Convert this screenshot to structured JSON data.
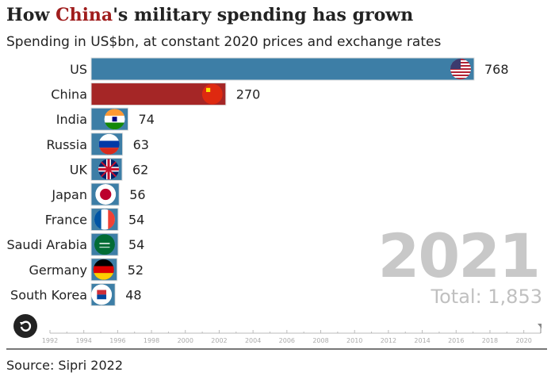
{
  "title_pre": "How ",
  "title_hl": "China",
  "title_post": "'s military spending has grown",
  "subtitle": "Spending in US$bn, at constant 2020 prices and exchange rates",
  "year": "2021",
  "total": "Total: 1,853",
  "source": "Source: Sipri 2022",
  "colors": {
    "default": "#3d7ea6",
    "highlight": "#a52626"
  },
  "chart_data": {
    "type": "bar",
    "orientation": "horizontal",
    "title": "How China's military spending has grown",
    "subtitle": "Spending in US$bn, at constant 2020 prices and exchange rates",
    "categories": [
      "US",
      "China",
      "India",
      "Russia",
      "UK",
      "Japan",
      "France",
      "Saudi Arabia",
      "Germany",
      "South Korea"
    ],
    "values": [
      768,
      270,
      74,
      63,
      62,
      56,
      54,
      54,
      52,
      48
    ],
    "highlight": "China",
    "xlim": [
      0,
      768
    ],
    "timeline": {
      "ticks": [
        "1992",
        "1994",
        "1996",
        "1998",
        "2000",
        "2002",
        "2004",
        "2006",
        "2008",
        "2010",
        "2012",
        "2014",
        "2016",
        "2018",
        "2020"
      ],
      "range": [
        1992,
        2021
      ],
      "current": 2021
    }
  }
}
